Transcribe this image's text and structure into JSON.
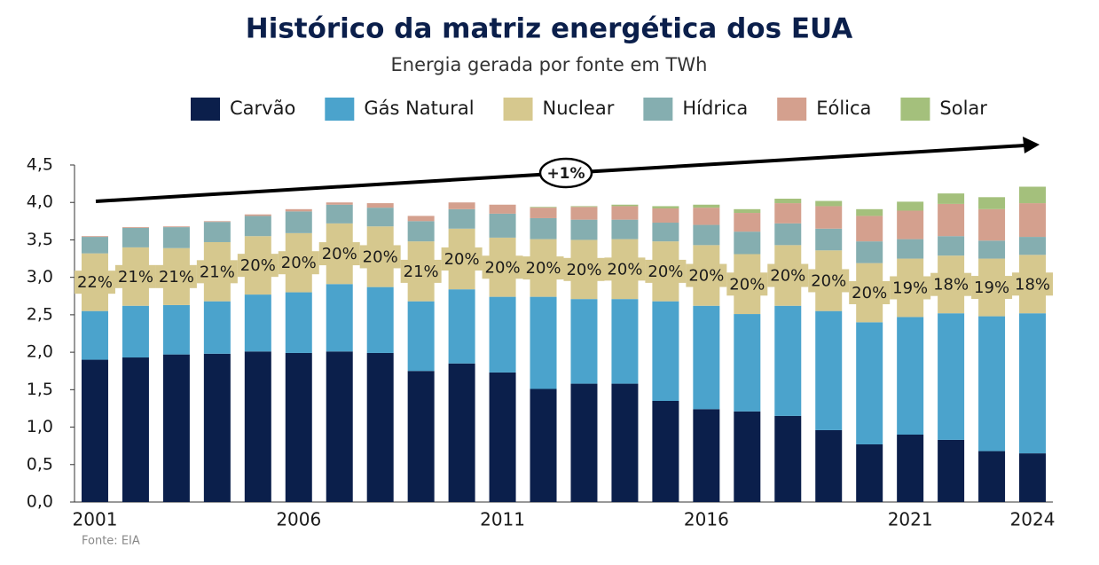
{
  "chart_data": {
    "type": "stacked-bar",
    "title": "Histórico da matriz energética dos EUA",
    "subtitle": "Energia gerada por fonte em TWh",
    "source": "Fonte: EIA",
    "trend_label": "+1%",
    "categories": [
      "2001",
      null,
      null,
      null,
      null,
      "2006",
      null,
      null,
      null,
      null,
      "2011",
      null,
      null,
      null,
      null,
      "2016",
      null,
      null,
      null,
      null,
      "2021",
      null,
      null,
      "2024"
    ],
    "series": [
      {
        "name": "Carvão",
        "color": "#0b1f4b",
        "values": [
          1.9,
          1.93,
          1.97,
          1.98,
          2.01,
          1.99,
          2.01,
          1.99,
          1.75,
          1.85,
          1.73,
          1.51,
          1.58,
          1.58,
          1.35,
          1.24,
          1.21,
          1.15,
          0.96,
          0.77,
          0.9,
          0.83,
          0.68,
          0.65
        ]
      },
      {
        "name": "Gás Natural",
        "color": "#4ba3cc",
        "values": [
          0.65,
          0.69,
          0.66,
          0.7,
          0.76,
          0.81,
          0.9,
          0.88,
          0.93,
          0.99,
          1.01,
          1.23,
          1.13,
          1.13,
          1.33,
          1.38,
          1.3,
          1.47,
          1.59,
          1.63,
          1.57,
          1.69,
          1.8,
          1.87
        ]
      },
      {
        "name": "Nuclear",
        "color": "#d6c88e",
        "values": [
          0.77,
          0.78,
          0.76,
          0.79,
          0.78,
          0.79,
          0.81,
          0.81,
          0.8,
          0.81,
          0.79,
          0.77,
          0.79,
          0.8,
          0.8,
          0.81,
          0.8,
          0.81,
          0.81,
          0.79,
          0.78,
          0.77,
          0.77,
          0.78
        ]
      },
      {
        "name": "Hídrica",
        "color": "#85aeb0",
        "values": [
          0.22,
          0.26,
          0.28,
          0.27,
          0.27,
          0.29,
          0.25,
          0.25,
          0.27,
          0.26,
          0.32,
          0.28,
          0.27,
          0.26,
          0.25,
          0.27,
          0.3,
          0.29,
          0.29,
          0.29,
          0.26,
          0.26,
          0.24,
          0.24
        ]
      },
      {
        "name": "Eólica",
        "color": "#d4a08e",
        "values": [
          0.01,
          0.01,
          0.01,
          0.01,
          0.02,
          0.03,
          0.03,
          0.06,
          0.07,
          0.09,
          0.12,
          0.14,
          0.17,
          0.18,
          0.19,
          0.23,
          0.25,
          0.27,
          0.3,
          0.34,
          0.38,
          0.43,
          0.42,
          0.45
        ]
      },
      {
        "name": "Solar",
        "color": "#a4c07c",
        "values": [
          0,
          0,
          0,
          0,
          0,
          0,
          0,
          0,
          0,
          0,
          0,
          0.01,
          0.01,
          0.02,
          0.03,
          0.04,
          0.05,
          0.06,
          0.07,
          0.09,
          0.12,
          0.14,
          0.16,
          0.22
        ]
      }
    ],
    "nuclear_share": {
      "values": [
        22,
        21,
        21,
        21,
        20,
        20,
        20,
        20,
        21,
        20,
        20,
        20,
        20,
        20,
        20,
        20,
        20,
        20,
        20,
        20,
        19,
        18,
        19,
        18
      ],
      "value_labels": [
        "22%",
        "21%",
        "21%",
        "21%",
        "20%",
        "20%",
        "20%",
        "20%",
        "21%",
        "20%",
        "20%",
        "20%",
        "20%",
        "20%",
        "20%",
        "20%",
        "20%",
        "20%",
        "20%",
        "20%",
        "19%",
        "18%",
        "19%",
        "18%"
      ]
    },
    "ylim": [
      0,
      4.5
    ],
    "yticks": [
      {
        "value": 0,
        "label": "0,0"
      },
      {
        "value": 0.5,
        "label": "0,5"
      },
      {
        "value": 1,
        "label": "1,0"
      },
      {
        "value": 1.5,
        "label": "1,5"
      },
      {
        "value": 2,
        "label": "2,0"
      },
      {
        "value": 2.5,
        "label": "2,5"
      },
      {
        "value": 3,
        "label": "3,0"
      },
      {
        "value": 3.5,
        "label": "3,5"
      },
      {
        "value": 4,
        "label": "4,0"
      },
      {
        "value": 4.5,
        "label": "4,5"
      }
    ],
    "grid": false
  }
}
